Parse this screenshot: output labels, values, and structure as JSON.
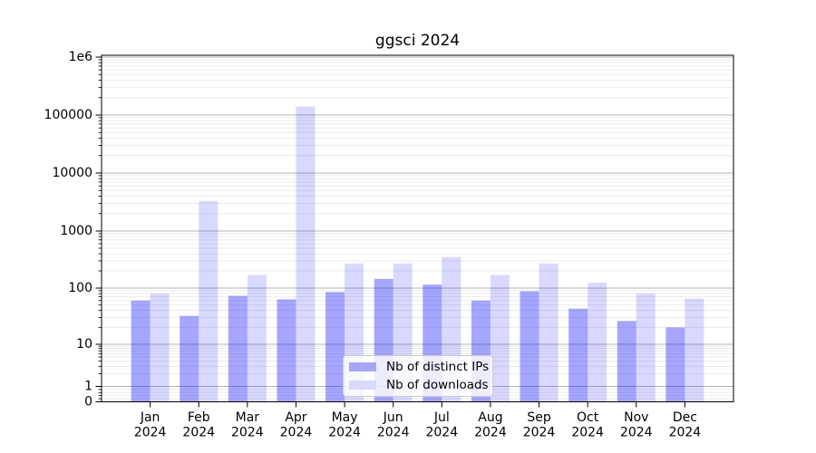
{
  "chart_data": {
    "type": "bar",
    "title": "ggsci 2024",
    "yscale": "symlog",
    "ylim": [
      0,
      1000000
    ],
    "grid": "both",
    "legend_position": "inside lower-center",
    "categories": [
      "Jan",
      "Feb",
      "Mar",
      "Apr",
      "May",
      "Jun",
      "Jul",
      "Aug",
      "Sep",
      "Oct",
      "Nov",
      "Dec"
    ],
    "xtick_year": "2024",
    "yticks": [
      {
        "value": 1000000,
        "label": "1e6"
      },
      {
        "value": 100000,
        "label": "100000"
      },
      {
        "value": 10000,
        "label": "10000"
      },
      {
        "value": 1000,
        "label": "1000"
      },
      {
        "value": 100,
        "label": "100"
      },
      {
        "value": 10,
        "label": "10"
      },
      {
        "value": 1,
        "label": "1"
      },
      {
        "value": 0,
        "label": "0"
      }
    ],
    "series": [
      {
        "name": "Nb of distinct IPs",
        "color": "#0000ff",
        "opacity": 0.35,
        "swatch": "#a6a6f7",
        "values": [
          60,
          32,
          73,
          63,
          85,
          145,
          115,
          60,
          88,
          43,
          26,
          20
        ]
      },
      {
        "name": "Nb of downloads",
        "color": "#0000ff",
        "opacity": 0.15,
        "swatch": "#d9d9fb",
        "values": [
          80,
          3300,
          170,
          140000,
          270,
          270,
          350,
          170,
          270,
          125,
          80,
          65
        ]
      }
    ],
    "colors": {
      "major_grid": "#b3b3b3",
      "minor_grid": "#ececec",
      "axis": "#000000"
    }
  }
}
